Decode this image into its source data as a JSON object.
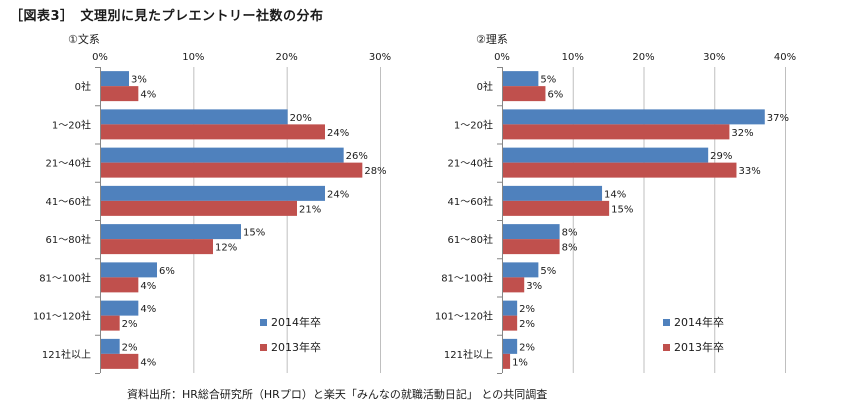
{
  "figure_title": "［図表3］　文理別に見たプレエントリー社数の分布",
  "source_note": "資料出所：HR総合研究所（HRプロ）と楽天「みんなの就職活動日記」 との共同調査",
  "colors": {
    "2014": "#4F81BD",
    "2013": "#C0504D",
    "grid": "#bfbfbf",
    "axis": "#868686"
  },
  "chart_data": [
    {
      "type": "bar",
      "orientation": "horizontal",
      "title": "①文系",
      "categories": [
        "0社",
        "1～20社",
        "21～40社",
        "41～60社",
        "61～80社",
        "81～100社",
        "101～120社",
        "121社以上"
      ],
      "series": [
        {
          "name": "2014年卒",
          "values": [
            3,
            20,
            26,
            24,
            15,
            6,
            4,
            2
          ]
        },
        {
          "name": "2013年卒",
          "values": [
            4,
            24,
            28,
            21,
            12,
            4,
            2,
            4
          ]
        }
      ],
      "xlim": [
        0,
        30
      ],
      "xticks": [
        "0%",
        "10%",
        "20%",
        "30%"
      ],
      "value_suffix": "%",
      "legend": "bottom-right",
      "grid": true
    },
    {
      "type": "bar",
      "orientation": "horizontal",
      "title": "②理系",
      "categories": [
        "0社",
        "1～20社",
        "21～40社",
        "41～60社",
        "61～80社",
        "81～100社",
        "101～120社",
        "121社以上"
      ],
      "series": [
        {
          "name": "2014年卒",
          "values": [
            5,
            37,
            29,
            14,
            8,
            5,
            2,
            2
          ]
        },
        {
          "name": "2013年卒",
          "values": [
            6,
            32,
            33,
            15,
            8,
            3,
            2,
            1
          ]
        }
      ],
      "xlim": [
        0,
        40
      ],
      "xticks": [
        "0%",
        "10%",
        "20%",
        "30%",
        "40%"
      ],
      "value_suffix": "%",
      "legend": "bottom-right",
      "grid": true
    }
  ]
}
